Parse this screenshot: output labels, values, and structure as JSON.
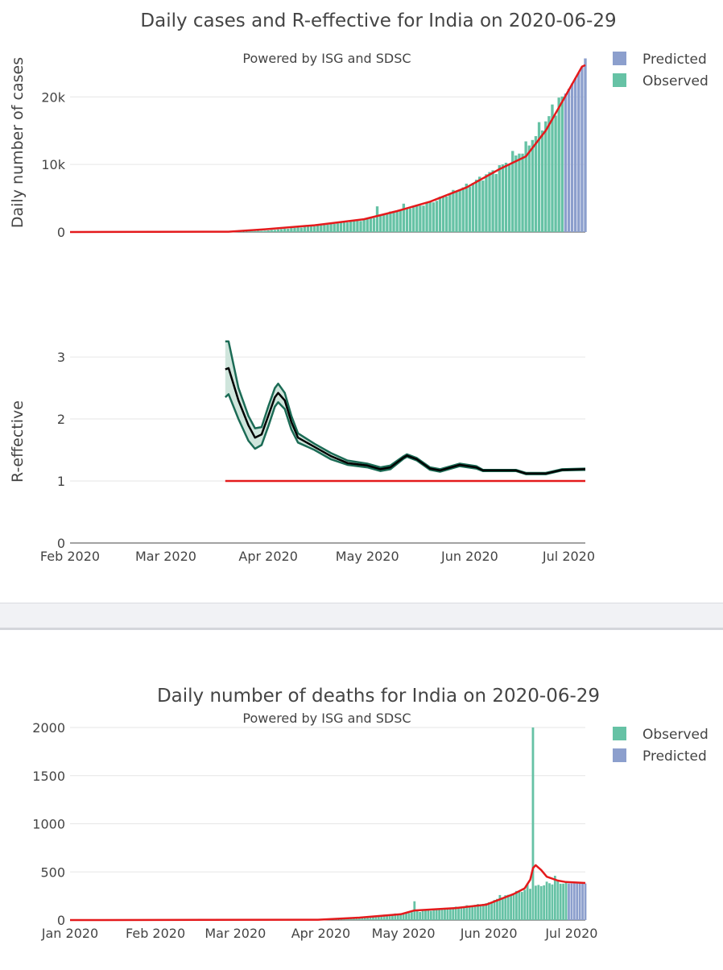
{
  "top": {
    "title": "Daily cases and R-effective for India on 2020-06-29",
    "subtitle": "Powered by ISG and SDSC",
    "legend": [
      {
        "label": "Predicted",
        "color": "#8c9fcd"
      },
      {
        "label": "Observed",
        "color": "#66c2a5"
      }
    ]
  },
  "bottom": {
    "title": "Daily number of deaths for India on 2020-06-29",
    "subtitle": "Powered by ISG and SDSC",
    "legend": [
      {
        "label": "Observed",
        "color": "#66c2a5"
      },
      {
        "label": "Predicted",
        "color": "#8c9fcd"
      }
    ]
  },
  "chart_data": [
    {
      "type": "bar",
      "name": "daily-cases",
      "ylabel": "Daily number of cases",
      "xlim": [
        "2020-02-01",
        "2020-07-06"
      ],
      "ylim": [
        0,
        26000
      ],
      "yticks": [
        {
          "v": 0,
          "label": "0"
        },
        {
          "v": 10000,
          "label": "10k"
        },
        {
          "v": 20000,
          "label": "20k"
        }
      ],
      "observed": {
        "color": "#66c2a5",
        "start": "2020-03-02",
        "end": "2020-06-29",
        "anchors": [
          [
            "2020-03-02",
            3
          ],
          [
            "2020-03-20",
            60
          ],
          [
            "2020-03-31",
            200
          ],
          [
            "2020-04-15",
            900
          ],
          [
            "2020-04-30",
            1800
          ],
          [
            "2020-05-10",
            3200
          ],
          [
            "2020-05-20",
            4300
          ],
          [
            "2020-05-31",
            6800
          ],
          [
            "2020-06-10",
            9500
          ],
          [
            "2020-06-18",
            12500
          ],
          [
            "2020-06-24",
            16500
          ],
          [
            "2020-06-29",
            19800
          ]
        ],
        "spikes": [
          [
            "2020-05-04",
            3800
          ],
          [
            "2020-05-12",
            4200
          ],
          [
            "2020-06-14",
            12000
          ],
          [
            "2020-06-28",
            19900
          ]
        ]
      },
      "predicted": {
        "color": "#8c9fcd",
        "start": "2020-06-30",
        "end": "2020-07-06",
        "values": [
          20500,
          21200,
          22000,
          22800,
          23600,
          24400,
          25700
        ]
      },
      "trend": {
        "color": "#e41a1c",
        "points": [
          [
            "2020-02-01",
            0
          ],
          [
            "2020-03-20",
            50
          ],
          [
            "2020-03-31",
            400
          ],
          [
            "2020-04-15",
            1000
          ],
          [
            "2020-04-30",
            1900
          ],
          [
            "2020-05-10",
            3100
          ],
          [
            "2020-05-20",
            4500
          ],
          [
            "2020-05-31",
            6600
          ],
          [
            "2020-06-10",
            9300
          ],
          [
            "2020-06-18",
            11200
          ],
          [
            "2020-06-24",
            15000
          ],
          [
            "2020-06-29",
            19300
          ],
          [
            "2020-07-05",
            24500
          ],
          [
            "2020-07-06",
            24700
          ]
        ]
      }
    },
    {
      "type": "line",
      "name": "r-effective",
      "ylabel": "R-effective",
      "xlim": [
        "2020-02-01",
        "2020-07-06"
      ],
      "ylim": [
        0,
        3.3
      ],
      "yticks": [
        {
          "v": 0,
          "label": "0"
        },
        {
          "v": 1,
          "label": "1"
        },
        {
          "v": 2,
          "label": "2"
        },
        {
          "v": 3,
          "label": "3"
        }
      ],
      "xticks": [
        {
          "d": "2020-02-01",
          "label": "Feb 2020"
        },
        {
          "d": "2020-03-01",
          "label": "Mar 2020"
        },
        {
          "d": "2020-04-01",
          "label": "Apr 2020"
        },
        {
          "d": "2020-05-01",
          "label": "May 2020"
        },
        {
          "d": "2020-06-01",
          "label": "Jun 2020"
        },
        {
          "d": "2020-07-01",
          "label": "Jul 2020"
        }
      ],
      "series": [
        {
          "name": "R-effective median",
          "color": "#000000",
          "points": [
            [
              "2020-03-19",
              2.8
            ],
            [
              "2020-03-20",
              2.82
            ],
            [
              "2020-03-23",
              2.3
            ],
            [
              "2020-03-26",
              1.9
            ],
            [
              "2020-03-28",
              1.7
            ],
            [
              "2020-03-30",
              1.75
            ],
            [
              "2020-04-01",
              2.05
            ],
            [
              "2020-04-03",
              2.35
            ],
            [
              "2020-04-04",
              2.42
            ],
            [
              "2020-04-06",
              2.3
            ],
            [
              "2020-04-08",
              1.95
            ],
            [
              "2020-04-10",
              1.7
            ],
            [
              "2020-04-15",
              1.55
            ],
            [
              "2020-04-20",
              1.4
            ],
            [
              "2020-04-25",
              1.29
            ],
            [
              "2020-05-01",
              1.25
            ],
            [
              "2020-05-05",
              1.19
            ],
            [
              "2020-05-08",
              1.22
            ],
            [
              "2020-05-12",
              1.38
            ],
            [
              "2020-05-13",
              1.41
            ],
            [
              "2020-05-16",
              1.35
            ],
            [
              "2020-05-20",
              1.2
            ],
            [
              "2020-05-23",
              1.17
            ],
            [
              "2020-05-29",
              1.26
            ],
            [
              "2020-06-03",
              1.22
            ],
            [
              "2020-06-05",
              1.17
            ],
            [
              "2020-06-15",
              1.17
            ],
            [
              "2020-06-18",
              1.12
            ],
            [
              "2020-06-24",
              1.12
            ],
            [
              "2020-06-29",
              1.18
            ],
            [
              "2020-07-06",
              1.19
            ]
          ]
        },
        {
          "name": "R-effective upper",
          "color": "#1b6b55",
          "points": [
            [
              "2020-03-19",
              3.25
            ],
            [
              "2020-03-20",
              3.25
            ],
            [
              "2020-03-23",
              2.5
            ],
            [
              "2020-03-26",
              2.05
            ],
            [
              "2020-03-28",
              1.85
            ],
            [
              "2020-03-30",
              1.87
            ],
            [
              "2020-04-01",
              2.2
            ],
            [
              "2020-04-03",
              2.5
            ],
            [
              "2020-04-04",
              2.57
            ],
            [
              "2020-04-06",
              2.42
            ],
            [
              "2020-04-08",
              2.05
            ],
            [
              "2020-04-10",
              1.77
            ],
            [
              "2020-04-15",
              1.6
            ],
            [
              "2020-04-20",
              1.45
            ],
            [
              "2020-04-25",
              1.33
            ],
            [
              "2020-05-01",
              1.28
            ],
            [
              "2020-05-05",
              1.22
            ],
            [
              "2020-05-08",
              1.25
            ],
            [
              "2020-05-12",
              1.4
            ],
            [
              "2020-05-13",
              1.43
            ],
            [
              "2020-05-16",
              1.37
            ],
            [
              "2020-05-20",
              1.22
            ],
            [
              "2020-05-23",
              1.19
            ],
            [
              "2020-05-29",
              1.28
            ],
            [
              "2020-06-03",
              1.24
            ],
            [
              "2020-06-05",
              1.18
            ],
            [
              "2020-06-15",
              1.18
            ],
            [
              "2020-06-18",
              1.13
            ],
            [
              "2020-06-24",
              1.13
            ],
            [
              "2020-06-29",
              1.19
            ],
            [
              "2020-07-06",
              1.2
            ]
          ]
        },
        {
          "name": "R-effective lower",
          "color": "#1b6b55",
          "points": [
            [
              "2020-03-19",
              2.35
            ],
            [
              "2020-03-20",
              2.4
            ],
            [
              "2020-03-23",
              2.0
            ],
            [
              "2020-03-26",
              1.65
            ],
            [
              "2020-03-28",
              1.52
            ],
            [
              "2020-03-30",
              1.58
            ],
            [
              "2020-04-01",
              1.88
            ],
            [
              "2020-04-03",
              2.2
            ],
            [
              "2020-04-04",
              2.27
            ],
            [
              "2020-04-06",
              2.16
            ],
            [
              "2020-04-08",
              1.83
            ],
            [
              "2020-04-10",
              1.62
            ],
            [
              "2020-04-15",
              1.5
            ],
            [
              "2020-04-20",
              1.35
            ],
            [
              "2020-04-25",
              1.26
            ],
            [
              "2020-05-01",
              1.22
            ],
            [
              "2020-05-05",
              1.16
            ],
            [
              "2020-05-08",
              1.19
            ],
            [
              "2020-05-12",
              1.36
            ],
            [
              "2020-05-13",
              1.39
            ],
            [
              "2020-05-16",
              1.33
            ],
            [
              "2020-05-20",
              1.18
            ],
            [
              "2020-05-23",
              1.15
            ],
            [
              "2020-05-29",
              1.24
            ],
            [
              "2020-06-03",
              1.2
            ],
            [
              "2020-06-05",
              1.16
            ],
            [
              "2020-06-15",
              1.16
            ],
            [
              "2020-06-18",
              1.11
            ],
            [
              "2020-06-24",
              1.11
            ],
            [
              "2020-06-29",
              1.17
            ],
            [
              "2020-07-06",
              1.18
            ]
          ]
        },
        {
          "name": "R threshold",
          "color": "#e41a1c",
          "points": [
            [
              "2020-03-19",
              1
            ],
            [
              "2020-07-06",
              1
            ]
          ]
        }
      ]
    },
    {
      "type": "bar",
      "name": "daily-deaths",
      "ylabel": "",
      "xlim": [
        "2020-01-01",
        "2020-07-06"
      ],
      "ylim": [
        0,
        2000
      ],
      "yticks": [
        {
          "v": 0,
          "label": "0"
        },
        {
          "v": 500,
          "label": "500"
        },
        {
          "v": 1000,
          "label": "1000"
        },
        {
          "v": 1500,
          "label": "1500"
        },
        {
          "v": 2000,
          "label": "2000"
        }
      ],
      "xticks": [
        {
          "d": "2020-01-01",
          "label": "Jan 2020"
        },
        {
          "d": "2020-02-01",
          "label": "Feb 2020"
        },
        {
          "d": "2020-03-01",
          "label": "Mar 2020"
        },
        {
          "d": "2020-04-01",
          "label": "Apr 2020"
        },
        {
          "d": "2020-05-01",
          "label": "May 2020"
        },
        {
          "d": "2020-06-01",
          "label": "Jun 2020"
        },
        {
          "d": "2020-07-01",
          "label": "Jul 2020"
        }
      ],
      "observed": {
        "color": "#66c2a5",
        "start": "2020-04-01",
        "end": "2020-06-29",
        "anchors": [
          [
            "2020-04-01",
            4
          ],
          [
            "2020-04-10",
            20
          ],
          [
            "2020-04-20",
            40
          ],
          [
            "2020-04-30",
            70
          ],
          [
            "2020-05-10",
            100
          ],
          [
            "2020-05-20",
            130
          ],
          [
            "2020-05-31",
            170
          ],
          [
            "2020-06-10",
            280
          ],
          [
            "2020-06-16",
            330
          ],
          [
            "2020-06-22",
            380
          ],
          [
            "2020-06-29",
            390
          ]
        ],
        "spikes": [
          [
            "2020-05-05",
            195
          ],
          [
            "2020-06-05",
            260
          ],
          [
            "2020-06-15",
            380
          ],
          [
            "2020-06-17",
            2000
          ],
          [
            "2020-06-25",
            460
          ]
        ]
      },
      "predicted": {
        "color": "#8c9fcd",
        "start": "2020-06-30",
        "end": "2020-07-06",
        "values": [
          380,
          380,
          380,
          380,
          380,
          380,
          380
        ]
      },
      "trend": {
        "color": "#e41a1c",
        "points": [
          [
            "2020-01-01",
            0
          ],
          [
            "2020-03-31",
            3
          ],
          [
            "2020-04-15",
            25
          ],
          [
            "2020-04-30",
            60
          ],
          [
            "2020-05-05",
            100
          ],
          [
            "2020-05-20",
            125
          ],
          [
            "2020-05-31",
            160
          ],
          [
            "2020-06-10",
            270
          ],
          [
            "2020-06-14",
            330
          ],
          [
            "2020-06-16",
            420
          ],
          [
            "2020-06-17",
            540
          ],
          [
            "2020-06-18",
            570
          ],
          [
            "2020-06-20",
            520
          ],
          [
            "2020-06-22",
            450
          ],
          [
            "2020-06-26",
            410
          ],
          [
            "2020-06-29",
            395
          ],
          [
            "2020-07-06",
            385
          ]
        ]
      }
    }
  ]
}
